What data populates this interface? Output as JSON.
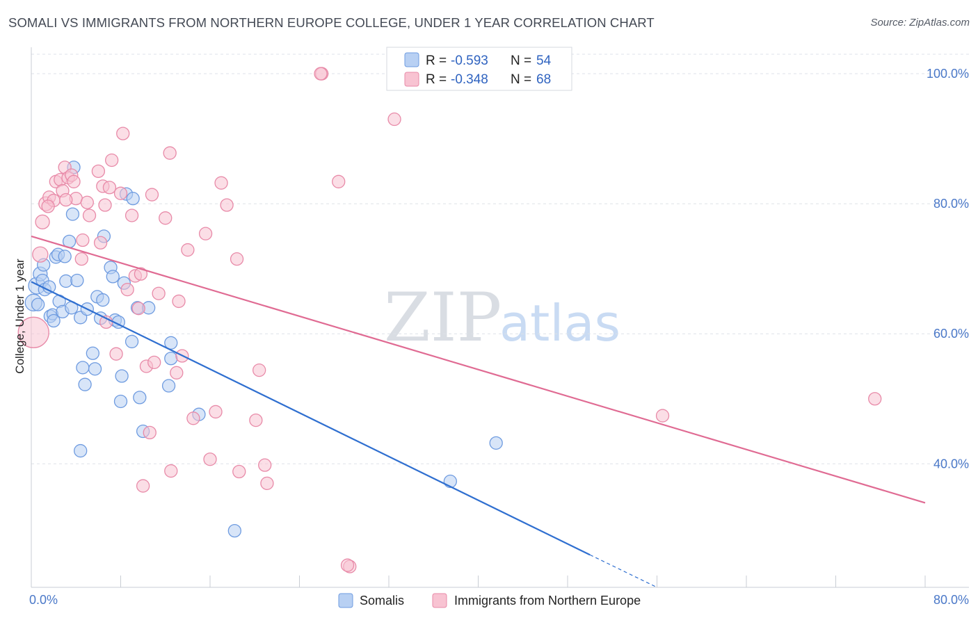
{
  "header": {
    "title": "SOMALI VS IMMIGRANTS FROM NORTHERN EUROPE COLLEGE, UNDER 1 YEAR CORRELATION CHART",
    "source": "Source: ZipAtlas.com"
  },
  "watermark": {
    "zip": "ZIP",
    "atlas": "atlas"
  },
  "colors": {
    "somali_fill": "#b8d0f3",
    "somali_stroke": "#6e9be0",
    "somali_line": "#2f6fd0",
    "neu_fill": "#f8c3d2",
    "neu_stroke": "#e88aa8",
    "neu_line": "#e06b93",
    "tick": "#4a78c8",
    "grid": "#dde1e8"
  },
  "legend": {
    "rows": [
      {
        "r_label": "R =",
        "r_value": "-0.593",
        "n_label": "N =",
        "n_value": "54"
      },
      {
        "r_label": "R =",
        "r_value": "-0.348",
        "n_label": "N =",
        "n_value": "68"
      }
    ]
  },
  "bottom_legend": {
    "somalis": "Somalis",
    "neu": "Immigrants from Northern Europe"
  },
  "chart_data": {
    "type": "scatter",
    "title": "SOMALI VS IMMIGRANTS FROM NORTHERN EUROPE COLLEGE, UNDER 1 YEAR CORRELATION CHART",
    "xlabel": "",
    "ylabel": "College, Under 1 year",
    "xlim": [
      0,
      80
    ],
    "ylim": [
      21,
      103
    ],
    "x_tick_labels": [
      "0.0%",
      "80.0%"
    ],
    "y_ticks": [
      40,
      60,
      80,
      100
    ],
    "y_tick_labels": [
      "40.0%",
      "60.0%",
      "80.0%",
      "100.0%"
    ],
    "grid": true,
    "legend_position": "top-center",
    "series": [
      {
        "name": "Somalis",
        "r": -0.593,
        "n": 54,
        "trend": {
          "x0": 0,
          "y0": 68,
          "x1": 50,
          "y1": 26,
          "dash_x1": 56,
          "dash_y1": 21
        },
        "points": [
          [
            0.2,
            64.8,
            12
          ],
          [
            0.5,
            67.4,
            12
          ],
          [
            0.8,
            69.2,
            10
          ],
          [
            1.0,
            68.2,
            9
          ],
          [
            1.2,
            66.8,
            9
          ],
          [
            1.1,
            70.6,
            9
          ],
          [
            1.6,
            67.2,
            9
          ],
          [
            1.7,
            62.7,
            9
          ],
          [
            1.9,
            63.0,
            8
          ],
          [
            2.0,
            62.0,
            9
          ],
          [
            2.2,
            71.8,
            9
          ],
          [
            2.4,
            72.2,
            9
          ],
          [
            2.5,
            65.0,
            9
          ],
          [
            2.8,
            63.4,
            9
          ],
          [
            3.0,
            71.9,
            9
          ],
          [
            3.1,
            68.1,
            9
          ],
          [
            3.4,
            74.2,
            9
          ],
          [
            3.6,
            64.0,
            9
          ],
          [
            3.7,
            78.4,
            9
          ],
          [
            3.8,
            85.6,
            9
          ],
          [
            4.1,
            68.2,
            9
          ],
          [
            4.4,
            62.5,
            9
          ],
          [
            4.6,
            54.8,
            9
          ],
          [
            4.8,
            52.2,
            9
          ],
          [
            5.0,
            63.8,
            9
          ],
          [
            5.5,
            57.0,
            9
          ],
          [
            5.7,
            54.6,
            9
          ],
          [
            5.9,
            65.7,
            9
          ],
          [
            6.2,
            62.4,
            9
          ],
          [
            6.4,
            65.2,
            9
          ],
          [
            6.5,
            75.0,
            9
          ],
          [
            7.1,
            70.2,
            9
          ],
          [
            7.3,
            68.8,
            9
          ],
          [
            7.5,
            62.1,
            9
          ],
          [
            7.8,
            61.8,
            9
          ],
          [
            8.0,
            49.6,
            9
          ],
          [
            8.1,
            53.5,
            9
          ],
          [
            8.3,
            67.8,
            9
          ],
          [
            8.5,
            81.5,
            9
          ],
          [
            9.0,
            58.8,
            9
          ],
          [
            9.1,
            80.8,
            9
          ],
          [
            9.5,
            64.0,
            9
          ],
          [
            9.7,
            50.2,
            9
          ],
          [
            10.0,
            45.0,
            9
          ],
          [
            10.5,
            64.0,
            9
          ],
          [
            12.3,
            52.0,
            9
          ],
          [
            12.5,
            58.6,
            9
          ],
          [
            12.5,
            56.2,
            9
          ],
          [
            15.0,
            47.6,
            9
          ],
          [
            18.2,
            29.7,
            9
          ],
          [
            4.4,
            42.0,
            9
          ],
          [
            37.5,
            37.3,
            9
          ],
          [
            41.6,
            43.2,
            9
          ],
          [
            0.6,
            64.5,
            9
          ]
        ]
      },
      {
        "name": "Immigrants from Northern Europe",
        "r": -0.348,
        "n": 68,
        "trend": {
          "x0": 0,
          "y0": 75,
          "x1": 80,
          "y1": 34
        },
        "points": [
          [
            0.2,
            60.2,
            22
          ],
          [
            0.8,
            72.2,
            11
          ],
          [
            1.0,
            77.2,
            10
          ],
          [
            1.3,
            80.0,
            10
          ],
          [
            1.6,
            81.0,
            9
          ],
          [
            2.0,
            80.5,
            9
          ],
          [
            2.2,
            83.4,
            9
          ],
          [
            2.6,
            83.7,
            9
          ],
          [
            2.8,
            82.0,
            9
          ],
          [
            3.0,
            85.6,
            9
          ],
          [
            3.3,
            84.0,
            9
          ],
          [
            3.6,
            84.4,
            9
          ],
          [
            3.8,
            83.4,
            9
          ],
          [
            4.0,
            80.8,
            9
          ],
          [
            4.5,
            71.5,
            9
          ],
          [
            4.6,
            74.4,
            9
          ],
          [
            5.0,
            80.2,
            9
          ],
          [
            5.2,
            78.2,
            9
          ],
          [
            6.0,
            85.0,
            9
          ],
          [
            6.2,
            74.0,
            9
          ],
          [
            6.4,
            82.7,
            9
          ],
          [
            6.6,
            79.8,
            9
          ],
          [
            7.0,
            82.5,
            9
          ],
          [
            7.2,
            86.7,
            9
          ],
          [
            7.6,
            56.9,
            9
          ],
          [
            8.0,
            81.6,
            9
          ],
          [
            8.2,
            90.8,
            9
          ],
          [
            8.6,
            66.8,
            9
          ],
          [
            9.0,
            78.2,
            9
          ],
          [
            9.3,
            68.9,
            9
          ],
          [
            9.6,
            63.9,
            9
          ],
          [
            9.8,
            69.2,
            9
          ],
          [
            10.0,
            36.6,
            9
          ],
          [
            10.3,
            55.0,
            9
          ],
          [
            10.6,
            44.8,
            9
          ],
          [
            10.8,
            81.4,
            9
          ],
          [
            11.0,
            55.6,
            9
          ],
          [
            11.4,
            66.2,
            9
          ],
          [
            12.0,
            77.8,
            9
          ],
          [
            12.4,
            87.8,
            9
          ],
          [
            13.0,
            54.0,
            9
          ],
          [
            13.2,
            65.0,
            9
          ],
          [
            13.5,
            56.6,
            9
          ],
          [
            14.0,
            72.9,
            9
          ],
          [
            14.5,
            47.0,
            9
          ],
          [
            15.6,
            75.4,
            9
          ],
          [
            16.0,
            40.7,
            9
          ],
          [
            16.5,
            48.0,
            9
          ],
          [
            17.0,
            83.2,
            9
          ],
          [
            17.5,
            79.8,
            9
          ],
          [
            18.4,
            71.5,
            9
          ],
          [
            18.6,
            38.8,
            9
          ],
          [
            20.1,
            46.7,
            9
          ],
          [
            20.4,
            54.4,
            9
          ],
          [
            20.9,
            39.8,
            9
          ],
          [
            21.1,
            37.0,
            9
          ],
          [
            26.0,
            100.0,
            9
          ],
          [
            27.5,
            83.4,
            9
          ],
          [
            28.5,
            24.2,
            9
          ],
          [
            28.3,
            24.4,
            9
          ],
          [
            32.5,
            93.0,
            9
          ],
          [
            56.5,
            47.4,
            9
          ],
          [
            75.5,
            50.0,
            9
          ],
          [
            25.9,
            100.0,
            9
          ],
          [
            6.7,
            61.8,
            9
          ],
          [
            12.5,
            38.9,
            9
          ],
          [
            3.1,
            80.6,
            9
          ],
          [
            1.5,
            79.6,
            9
          ]
        ]
      }
    ]
  }
}
